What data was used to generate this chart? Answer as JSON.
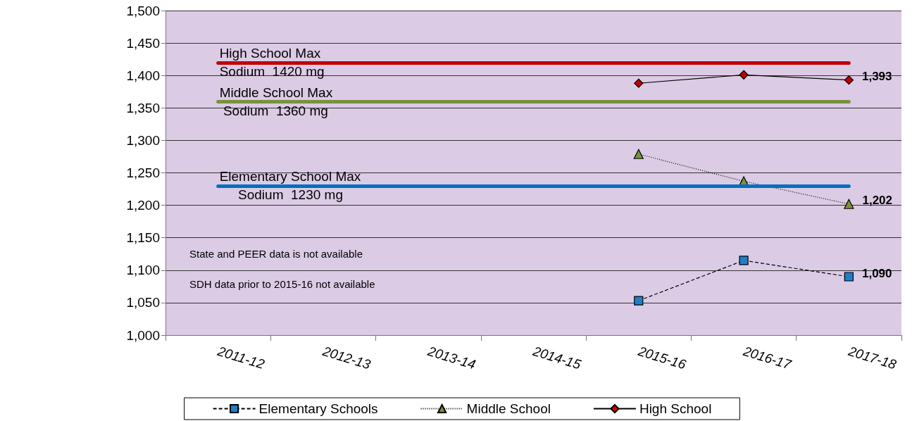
{
  "chart_data": {
    "type": "line",
    "categories": [
      "2011-12",
      "2012-13",
      "2013-14",
      "2014-15",
      "2015-16",
      "2016-17",
      "2017-18"
    ],
    "series": [
      {
        "name": "Elementary Schools",
        "color": "#1f7fc9",
        "marker": "square",
        "line_style": "dashed",
        "values": [
          null,
          null,
          null,
          null,
          1053,
          1115,
          1090
        ],
        "value_labels": [
          null,
          null,
          null,
          null,
          null,
          null,
          "1,090"
        ]
      },
      {
        "name": "Middle School",
        "color": "#77933c",
        "marker": "triangle",
        "line_style": "dotted",
        "values": [
          null,
          null,
          null,
          null,
          1279,
          1237,
          1202
        ],
        "value_labels": [
          null,
          null,
          null,
          null,
          null,
          null,
          "1,202"
        ]
      },
      {
        "name": "High School",
        "color": "#c00000",
        "marker": "diamond",
        "line_style": "solid",
        "values": [
          null,
          null,
          null,
          null,
          1388,
          1401,
          1393
        ],
        "value_labels": [
          null,
          null,
          null,
          null,
          null,
          null,
          "1,393"
        ]
      }
    ],
    "ylim": [
      1000,
      1500
    ],
    "yticks": [
      {
        "value": 1000,
        "label": "1,000"
      },
      {
        "value": 1050,
        "label": "1,050"
      },
      {
        "value": 1100,
        "label": "1,100"
      },
      {
        "value": 1150,
        "label": "1,150"
      },
      {
        "value": 1200,
        "label": "1,200"
      },
      {
        "value": 1250,
        "label": "1,250"
      },
      {
        "value": 1300,
        "label": "1,300"
      },
      {
        "value": 1350,
        "label": "1,350"
      },
      {
        "value": 1400,
        "label": "1,400"
      },
      {
        "value": 1450,
        "label": "1,450"
      },
      {
        "value": 1500,
        "label": "1,500"
      }
    ],
    "ref_lines": [
      {
        "axis": "y",
        "value": 1420,
        "label": "High School Max\nSodium  1420 mg",
        "color": "#c00000"
      },
      {
        "axis": "y",
        "value": 1360,
        "label": "Middle School Max\n Sodium  1360 mg",
        "color": "#77933c"
      },
      {
        "axis": "y",
        "value": 1230,
        "label": "Elementary School Max\n     Sodium  1230 mg",
        "color": "#0070c0"
      }
    ],
    "annotations": [
      "State and PEER data is not available",
      "SDH data prior to 2015-16 not available"
    ],
    "grid": "y",
    "legend": "bottom"
  }
}
